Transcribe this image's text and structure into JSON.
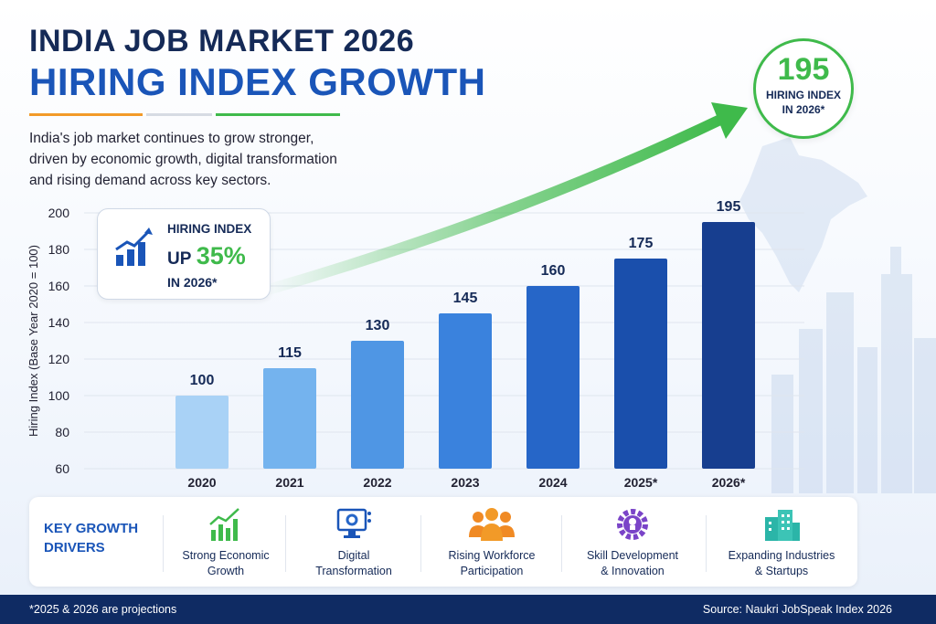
{
  "header": {
    "title_line1": "INDIA JOB MARKET 2026",
    "title_line2": "HIRING INDEX GROWTH",
    "intro_line1": "India's job market continues to grow stronger,",
    "intro_line2": "driven by economic growth, digital transformation",
    "intro_line3": "and rising demand across key sectors."
  },
  "callout": {
    "value": "195",
    "label_line1": "HIRING INDEX",
    "label_line2": "IN 2026*"
  },
  "badge": {
    "line1": "HIRING INDEX",
    "line2_prefix": "UP",
    "line2_value": "35%",
    "line3": "IN 2026*"
  },
  "chart_data": {
    "type": "bar",
    "categories": [
      "2020",
      "2021",
      "2022",
      "2023",
      "2024",
      "2025*",
      "2026*"
    ],
    "values": [
      100,
      115,
      130,
      145,
      160,
      175,
      195
    ],
    "data_labels": [
      "100",
      "115",
      "130",
      "145",
      "160",
      "175",
      "195"
    ],
    "bar_colors": [
      "#a9d2f6",
      "#74b3ee",
      "#4f96e4",
      "#3a82dd",
      "#2666c8",
      "#1a4fac",
      "#173e8f"
    ],
    "ylabel": "Hiring Index (Base Year 2020 = 100)",
    "ylim": [
      60,
      200
    ],
    "yticks": [
      60,
      80,
      100,
      120,
      140,
      160,
      180,
      200
    ],
    "grid": true
  },
  "drivers": {
    "title_line1": "KEY GROWTH",
    "title_line2": "DRIVERS",
    "items": [
      {
        "icon": "growth-chart-icon",
        "line1": "Strong Economic",
        "line2": "Growth"
      },
      {
        "icon": "computer-gear-icon",
        "line1": "Digital",
        "line2": "Transformation"
      },
      {
        "icon": "people-group-icon",
        "line1": "Rising Workforce",
        "line2": "Participation"
      },
      {
        "icon": "gear-lightbulb-icon",
        "line1": "Skill Development",
        "line2": "& Innovation"
      },
      {
        "icon": "buildings-icon",
        "line1": "Expanding Industries",
        "line2": "& Startups"
      }
    ]
  },
  "footer": {
    "note": "*2025 & 2026 are projections",
    "source": "Source: Naukri JobSpeak Index 2026"
  },
  "colors": {
    "accent_green": "#3fba4b",
    "navy": "#152a57",
    "brand_blue": "#1a55b8"
  }
}
